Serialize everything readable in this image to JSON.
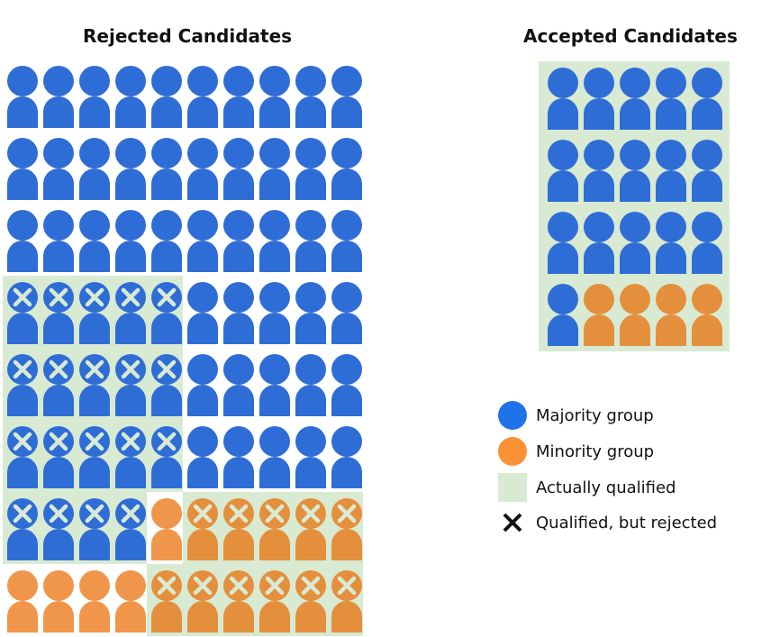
{
  "titles": {
    "rejected": "Rejected Candidates",
    "accepted": "Accepted Candidates"
  },
  "colors": {
    "majority": "#2f6dd6",
    "minority": "#f0964a",
    "minority_on_green": "#e48f3c",
    "qualified_bg": "#d9ead3",
    "x_mark": "#d9ead3"
  },
  "codes": {
    "B": "majority",
    "O": "minority",
    "BX": "majority, qualified but rejected",
    "OX": "minority, qualified but rejected",
    "BQ": "majority, qualified",
    "OQ": "minority, qualified"
  },
  "rejected_grid": [
    [
      "B",
      "B",
      "B",
      "B",
      "B",
      "B",
      "B",
      "B",
      "B",
      "B"
    ],
    [
      "B",
      "B",
      "B",
      "B",
      "B",
      "B",
      "B",
      "B",
      "B",
      "B"
    ],
    [
      "B",
      "B",
      "B",
      "B",
      "B",
      "B",
      "B",
      "B",
      "B",
      "B"
    ],
    [
      "BX",
      "BX",
      "BX",
      "BX",
      "BX",
      "B",
      "B",
      "B",
      "B",
      "B"
    ],
    [
      "BX",
      "BX",
      "BX",
      "BX",
      "BX",
      "B",
      "B",
      "B",
      "B",
      "B"
    ],
    [
      "BX",
      "BX",
      "BX",
      "BX",
      "BX",
      "B",
      "B",
      "B",
      "B",
      "B"
    ],
    [
      "BX",
      "BX",
      "BX",
      "BX",
      "O",
      "OX",
      "OX",
      "OX",
      "OX",
      "OX"
    ],
    [
      "O",
      "O",
      "O",
      "O",
      "OX",
      "OX",
      "OX",
      "OX",
      "OX",
      "OX"
    ]
  ],
  "accepted_grid": [
    [
      "BQ",
      "BQ",
      "BQ",
      "BQ",
      "BQ"
    ],
    [
      "BQ",
      "BQ",
      "BQ",
      "BQ",
      "BQ"
    ],
    [
      "BQ",
      "BQ",
      "BQ",
      "BQ",
      "BQ"
    ],
    [
      "BQ",
      "OQ",
      "OQ",
      "OQ",
      "OQ"
    ]
  ],
  "legend": [
    {
      "icon": "blue-circle",
      "label": "Majority group"
    },
    {
      "icon": "orange-circle",
      "label": "Minority group"
    },
    {
      "icon": "green-square",
      "label": "Actually qualified"
    },
    {
      "icon": "x-mark",
      "label": "Qualified, but rejected"
    }
  ]
}
